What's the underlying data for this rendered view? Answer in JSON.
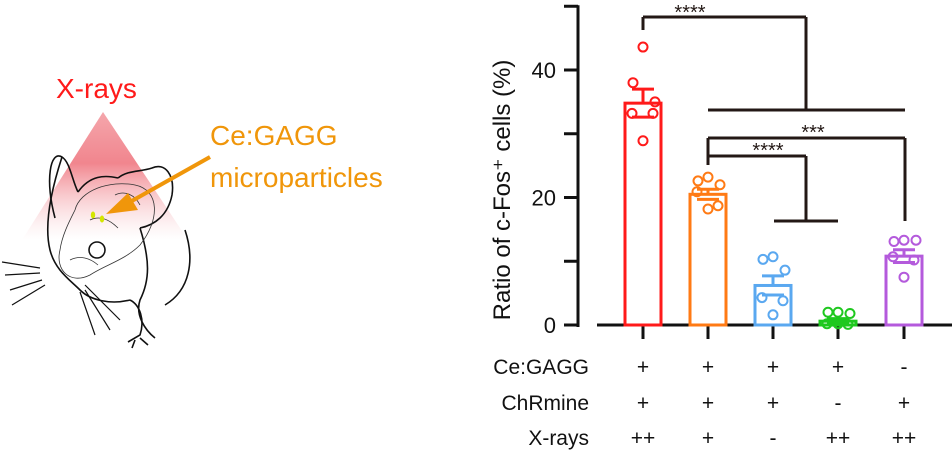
{
  "illustration": {
    "xray_label": "X-rays",
    "particle_label_line1": "Ce:GAGG",
    "particle_label_line2": "microparticles",
    "colors": {
      "xray": "#ff1a1a",
      "particles": "#f0960a",
      "dots": "#d4e600"
    }
  },
  "chart_data": {
    "type": "bar",
    "ylabel": "Ratio of c-Fos⁺ cells (%)",
    "ylim": [
      0,
      50
    ],
    "yticks": [
      0,
      10,
      20,
      30,
      40,
      50
    ],
    "ytick_labels": [
      "0",
      "20",
      "40"
    ],
    "ytick_label_values": [
      0,
      20,
      40
    ],
    "groups": [
      {
        "mean": 34.8,
        "sem_top": 37.0,
        "color": "#ff1a1a",
        "points": [
          43.6,
          38.0,
          35.0,
          33.2,
          33.2,
          28.9
        ]
      },
      {
        "mean": 20.5,
        "sem_top": 21.3,
        "color": "#ff7a14",
        "points": [
          23.2,
          22.6,
          22.0,
          20.9,
          18.7,
          18.2
        ]
      },
      {
        "mean": 6.2,
        "sem_top": 7.7,
        "color": "#5aa8f0",
        "points": [
          10.7,
          10.3,
          8.6,
          4.3,
          3.8,
          1.6
        ]
      },
      {
        "mean": 0.6,
        "sem_top": 1.0,
        "color": "#1ec81e",
        "points": [
          2.0,
          2.0,
          1.8,
          0.2,
          0.1,
          0.2
        ]
      },
      {
        "mean": 10.8,
        "sem_top": 11.8,
        "color": "#b45adc",
        "points": [
          13.3,
          13.1,
          13.3,
          10.7,
          10.2,
          7.5
        ]
      }
    ],
    "significance": [
      {
        "label": "****",
        "from": [
          0
        ],
        "to": [
          1,
          2,
          3,
          4
        ]
      },
      {
        "label": "***",
        "from": [
          1
        ],
        "to": [
          4
        ]
      },
      {
        "label": "****",
        "from": [
          1
        ],
        "to": [
          2,
          3
        ]
      }
    ],
    "conditions": [
      {
        "name": "Ce:GAGG",
        "values": [
          "+",
          "+",
          "+",
          "+",
          "-"
        ]
      },
      {
        "name": "ChRmine",
        "values": [
          "+",
          "+",
          "+",
          "-",
          "+"
        ]
      },
      {
        "name": "X-rays",
        "values": [
          "++",
          "+",
          "-",
          "++",
          "++"
        ]
      }
    ]
  }
}
